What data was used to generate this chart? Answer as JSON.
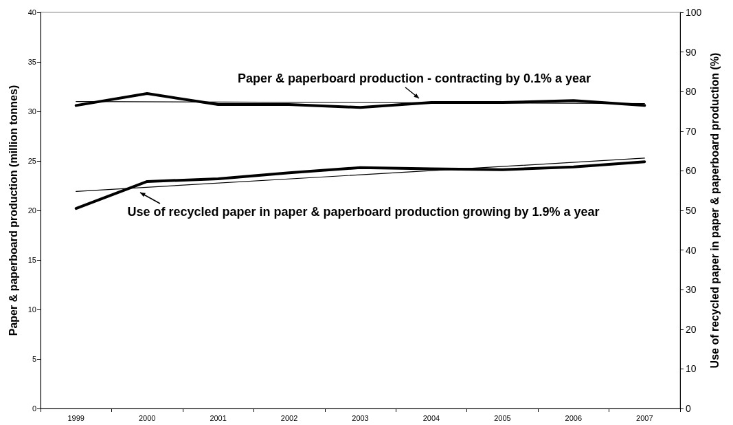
{
  "chart_data": {
    "type": "line",
    "ylabel": "Paper & paperboard production (million tonnes)",
    "y2label": "Use of recycled paper in paper & paperboard production (%)",
    "categories": [
      "1999",
      "2000",
      "2001",
      "2002",
      "2003",
      "2004",
      "2005",
      "2006",
      "2007"
    ],
    "series": [
      {
        "color": "#000000",
        "values": [
          30.6,
          31.8,
          30.7,
          30.7,
          30.4,
          30.9,
          30.9,
          31.1,
          30.6
        ]
      },
      {
        "color": "#000000",
        "axis": "y2",
        "values": [
          50.5,
          57.3,
          58.0,
          59.5,
          60.8,
          60.5,
          60.3,
          61.0,
          62.3
        ]
      },
      {
        "color": "#000000",
        "values": [
          31.0,
          null,
          null,
          null,
          null,
          null,
          null,
          null,
          30.8
        ]
      },
      {
        "color": "#000000",
        "axis": "y2",
        "values": [
          54.8,
          null,
          null,
          null,
          null,
          null,
          null,
          null,
          63.2
        ]
      }
    ],
    "ylim": [
      0,
      40
    ],
    "yticks": [
      0,
      5,
      10,
      15,
      20,
      25,
      30,
      35,
      40
    ],
    "y2lim": [
      0,
      100
    ],
    "y2ticks": [
      0,
      10,
      20,
      30,
      40,
      50,
      60,
      70,
      80,
      90,
      100
    ],
    "annotations": [
      "Paper & paperboard production - contracting by 0.1% a year",
      "Use of recycled paper in paper & paperboard production growing by 1.9% a year"
    ],
    "grid": false,
    "marker": "none",
    "line_style": "solid"
  }
}
